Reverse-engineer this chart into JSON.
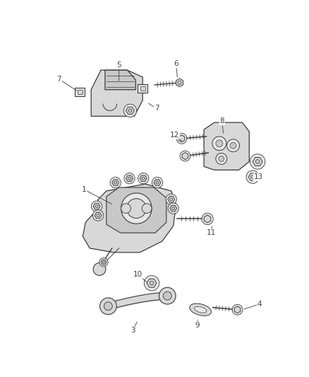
{
  "background_color": "#ffffff",
  "line_color": "#3a3a3a",
  "label_color": "#444444",
  "fig_width": 4.38,
  "fig_height": 5.33,
  "dpi": 100
}
